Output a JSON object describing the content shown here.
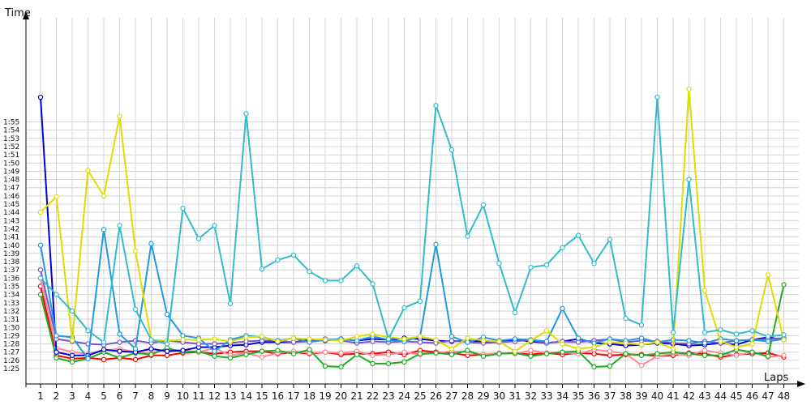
{
  "chart_data": {
    "type": "line",
    "ylabel": "Time",
    "xlabel": "Laps",
    "x": [
      1,
      2,
      3,
      4,
      5,
      6,
      7,
      8,
      9,
      10,
      11,
      12,
      13,
      14,
      15,
      16,
      17,
      18,
      19,
      20,
      21,
      22,
      23,
      24,
      25,
      26,
      27,
      28,
      29,
      30,
      31,
      32,
      33,
      34,
      35,
      36,
      37,
      38,
      39,
      40,
      41,
      42,
      43,
      44,
      45,
      46,
      47,
      48
    ],
    "y_tick_labels": [
      "1:25",
      "1:26",
      "1:27",
      "1:28",
      "1:29",
      "1:30",
      "1:31",
      "1:32",
      "1:33",
      "1:34",
      "1:35",
      "1:36",
      "1:37",
      "1:38",
      "1:39",
      "1:40",
      "1:41",
      "1:42",
      "1:43",
      "1:44",
      "1:45",
      "1:46",
      "1:47",
      "1:48",
      "1:49",
      "1:50",
      "1:51",
      "1:52",
      "1:53",
      "1:54",
      "1:55"
    ],
    "ylim_seconds": [
      84,
      118
    ],
    "grid": true,
    "series": [
      {
        "color": "#ff0000",
        "values": [
          95,
          86.6,
          86.2,
          86.3,
          86.1,
          86.3,
          86.1,
          86.6,
          86.6,
          86.9,
          87.0,
          86.8,
          87.0,
          87.1,
          87.1,
          86.8,
          87.0,
          86.8,
          87.0,
          86.7,
          86.8,
          86.8,
          87.0,
          86.7,
          87.2,
          87.0,
          86.9,
          86.6,
          86.7,
          86.8,
          86.9,
          86.7,
          86.9,
          86.7,
          86.9,
          86.8,
          86.6,
          86.7,
          86.7,
          86.5,
          86.6,
          86.9,
          86.8,
          86.4,
          86.7,
          86.8,
          86.9,
          86.4
        ]
      },
      {
        "color": "#ff8899",
        "values": [
          96,
          87.5,
          87.0,
          86.8,
          87.2,
          87.4,
          87.0,
          86.9,
          87.3,
          87.2,
          87.0,
          87.5,
          86.6,
          86.9,
          86.4,
          86.9,
          87.1,
          86.9,
          87.0,
          86.9,
          87.1,
          86.6,
          86.7,
          87.0,
          86.7,
          86.9,
          87.1,
          87.0,
          86.7,
          86.9,
          86.8,
          87.2,
          86.9,
          87.0,
          86.8,
          87.3,
          87.1,
          86.8,
          85.4,
          86.5,
          86.8,
          86.6,
          87.2,
          86.9,
          86.6,
          87.0,
          86.4,
          86.6
        ]
      },
      {
        "color": "#22aa22",
        "values": [
          94,
          86.3,
          85.8,
          86.2,
          87.0,
          86.3,
          86.9,
          86.7,
          87.5,
          87.0,
          87.1,
          86.5,
          86.3,
          86.7,
          87.1,
          87.2,
          86.8,
          87.3,
          85.3,
          85.2,
          86.7,
          85.6,
          85.6,
          85.8,
          86.8,
          86.9,
          86.7,
          87.2,
          86.5,
          86.8,
          86.9,
          86.5,
          86.8,
          87.0,
          87.1,
          85.2,
          85.3,
          86.8,
          86.6,
          86.8,
          87.0,
          86.8,
          86.6,
          86.6,
          87.3,
          87.0,
          86.5,
          95.2
        ]
      },
      {
        "color": "#0000dd",
        "values": [
          118,
          87.0,
          86.6,
          86.6,
          87.3,
          87.1,
          87.0,
          87.4,
          87.1,
          87.2,
          87.6,
          87.6,
          87.8,
          87.9,
          88.2,
          88.2,
          88.2,
          88.5,
          88.4,
          88.6,
          88.4,
          88.6,
          88.5,
          88.7,
          88.6,
          88.4,
          88.3,
          88.4,
          88.3,
          88.3,
          88.5,
          88.3,
          88.1,
          88.3,
          88.6,
          88.1,
          88.0,
          87.8,
          87.9,
          88.1,
          88.0,
          87.8,
          87.9,
          88.1,
          87.9,
          88.5,
          88.8,
          88.5
        ]
      },
      {
        "color": "#7755cc",
        "values": [
          97,
          88.6,
          88.3,
          88.0,
          87.9,
          88.2,
          88.4,
          88.1,
          88.4,
          88.2,
          88.0,
          88.0,
          88.1,
          88.3,
          88.4,
          88.4,
          88.2,
          88.3,
          88.6,
          88.4,
          88.1,
          88.3,
          88.2,
          88.3,
          88.2,
          88.1,
          88.4,
          88.2,
          88.1,
          88.2,
          88.3,
          88.5,
          88.1,
          88.3,
          88.2,
          88.4,
          88.6,
          88.2,
          88.4,
          88.3,
          88.1,
          88.0,
          88.3,
          88.1,
          88.4,
          88.5,
          88.6,
          88.7
        ]
      },
      {
        "color": "#2299dd",
        "values": [
          100,
          89.0,
          88.8,
          86.2,
          101.9,
          89.2,
          87.4,
          100.2,
          91.6,
          89.0,
          88.7,
          87.1,
          88.5,
          89.0,
          88.8,
          88.4,
          88.7,
          88.2,
          88.5,
          88.6,
          88.4,
          88.9,
          88.5,
          88.3,
          88.9,
          100.1,
          88.9,
          88.2,
          88.8,
          88.4,
          88.6,
          88.5,
          88.3,
          92.3,
          88.7,
          88.1,
          88.6,
          88.4,
          88.7,
          88.2,
          88.5,
          88.4,
          88.1,
          88.6,
          88.4,
          88.5,
          88.3,
          88.6
        ]
      },
      {
        "color": "#dddd00",
        "values": [
          104,
          105.9,
          88.4,
          109.1,
          106.0,
          115.7,
          99.3,
          88.5,
          88.4,
          88.5,
          88.5,
          88.6,
          88.3,
          88.8,
          88.9,
          88.3,
          88.7,
          88.6,
          88.5,
          88.4,
          88.9,
          89.2,
          88.8,
          88.6,
          88.9,
          88.5,
          87.4,
          88.7,
          88.4,
          88.3,
          87.1,
          88.4,
          89.6,
          88.0,
          87.4,
          87.6,
          88.2,
          88.1,
          87.9,
          88.2,
          87.4,
          119.0,
          94.5,
          88.3,
          87.6,
          88.0,
          96.4,
          88.5
        ]
      },
      {
        "color": "#33bbcc",
        "values": [
          96,
          94.0,
          92.0,
          89.6,
          88.2,
          102.4,
          92.2,
          88.5,
          88.0,
          104.5,
          100.8,
          102.4,
          92.9,
          116.0,
          97.1,
          98.2,
          98.8,
          96.8,
          95.7,
          95.7,
          97.5,
          95.3,
          88.6,
          92.4,
          93.2,
          117.0,
          111.6,
          101.1,
          104.9,
          97.8,
          91.8,
          97.3,
          97.6,
          99.7,
          101.2,
          97.8,
          100.7,
          91.1,
          90.3,
          118.0,
          89.4,
          108.0,
          89.4,
          89.7,
          89.2,
          89.6,
          88.9,
          89.1
        ]
      }
    ]
  }
}
